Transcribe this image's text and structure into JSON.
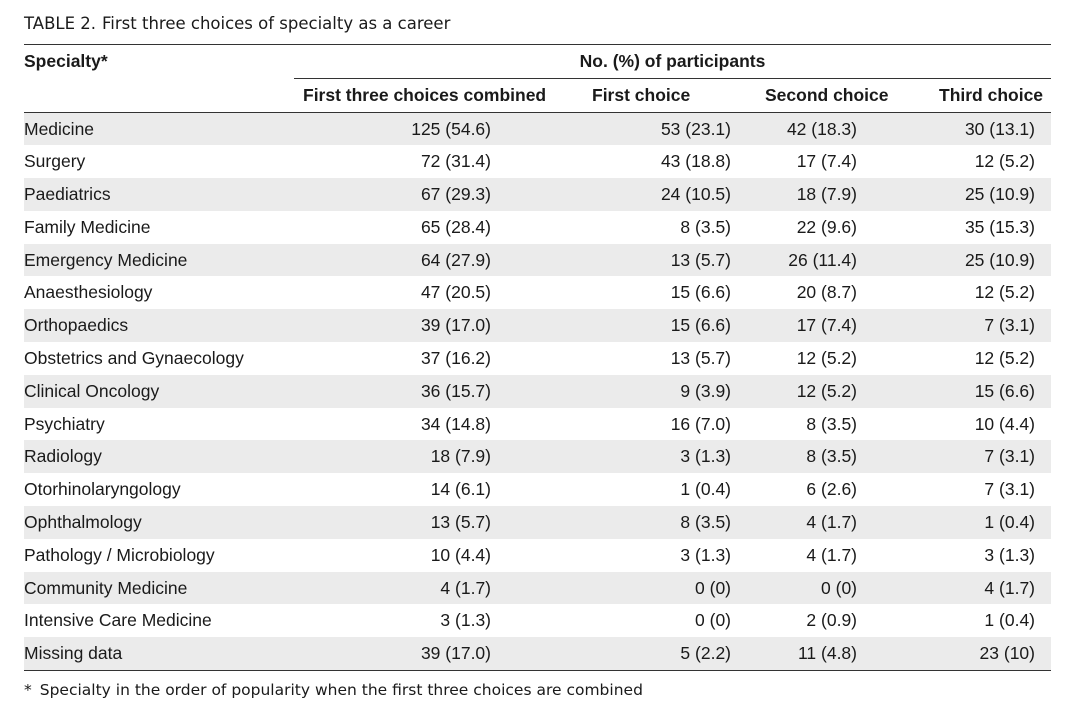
{
  "caption": {
    "label": "TABLE 2.",
    "text": "First three choices of specialty as a career"
  },
  "table": {
    "specialty_header": "Specialty*",
    "group_header": "No. (%) of participants",
    "columns": [
      "First three choices combined",
      "First choice",
      "Second choice",
      "Third choice"
    ],
    "rows": [
      {
        "specialty": "Medicine",
        "values": [
          "125 (54.6)",
          "53 (23.1)",
          "42 (18.3)",
          "30 (13.1)"
        ]
      },
      {
        "specialty": "Surgery",
        "values": [
          "72 (31.4)",
          "43 (18.8)",
          "17 (7.4)",
          "12 (5.2)"
        ]
      },
      {
        "specialty": "Paediatrics",
        "values": [
          "67 (29.3)",
          "24 (10.5)",
          "18 (7.9)",
          "25 (10.9)"
        ]
      },
      {
        "specialty": "Family Medicine",
        "values": [
          "65 (28.4)",
          "8 (3.5)",
          "22 (9.6)",
          "35 (15.3)"
        ]
      },
      {
        "specialty": "Emergency Medicine",
        "values": [
          "64 (27.9)",
          "13 (5.7)",
          "26 (11.4)",
          "25 (10.9)"
        ]
      },
      {
        "specialty": "Anaesthesiology",
        "values": [
          "47 (20.5)",
          "15 (6.6)",
          "20 (8.7)",
          "12 (5.2)"
        ]
      },
      {
        "specialty": "Orthopaedics",
        "values": [
          "39 (17.0)",
          "15 (6.6)",
          "17 (7.4)",
          "7 (3.1)"
        ]
      },
      {
        "specialty": "Obstetrics and Gynaecology",
        "values": [
          "37 (16.2)",
          "13 (5.7)",
          "12 (5.2)",
          "12 (5.2)"
        ]
      },
      {
        "specialty": "Clinical Oncology",
        "values": [
          "36 (15.7)",
          "9 (3.9)",
          "12 (5.2)",
          "15 (6.6)"
        ]
      },
      {
        "specialty": "Psychiatry",
        "values": [
          "34 (14.8)",
          "16 (7.0)",
          "8 (3.5)",
          "10 (4.4)"
        ]
      },
      {
        "specialty": "Radiology",
        "values": [
          "18 (7.9)",
          "3 (1.3)",
          "8 (3.5)",
          "7 (3.1)"
        ]
      },
      {
        "specialty": "Otorhinolaryngology",
        "values": [
          "14 (6.1)",
          "1 (0.4)",
          "6 (2.6)",
          "7 (3.1)"
        ]
      },
      {
        "specialty": "Ophthalmology",
        "values": [
          "13 (5.7)",
          "8 (3.5)",
          "4 (1.7)",
          "1 (0.4)"
        ]
      },
      {
        "specialty": "Pathology / Microbiology",
        "values": [
          "10 (4.4)",
          "3 (1.3)",
          "4 (1.7)",
          "3 (1.3)"
        ]
      },
      {
        "specialty": "Community Medicine",
        "values": [
          "4 (1.7)",
          "0 (0)",
          "0 (0)",
          "4 (1.7)"
        ]
      },
      {
        "specialty": "Intensive Care Medicine",
        "values": [
          "3 (1.3)",
          "0 (0)",
          "2 (0.9)",
          "1 (0.4)"
        ]
      },
      {
        "specialty": "Missing data",
        "values": [
          "39 (17.0)",
          "5 (2.2)",
          "11 (4.8)",
          "23 (10)"
        ]
      }
    ]
  },
  "footnote": {
    "mark": "*",
    "text": "Specialty in the order of popularity when the first three choices are combined"
  }
}
